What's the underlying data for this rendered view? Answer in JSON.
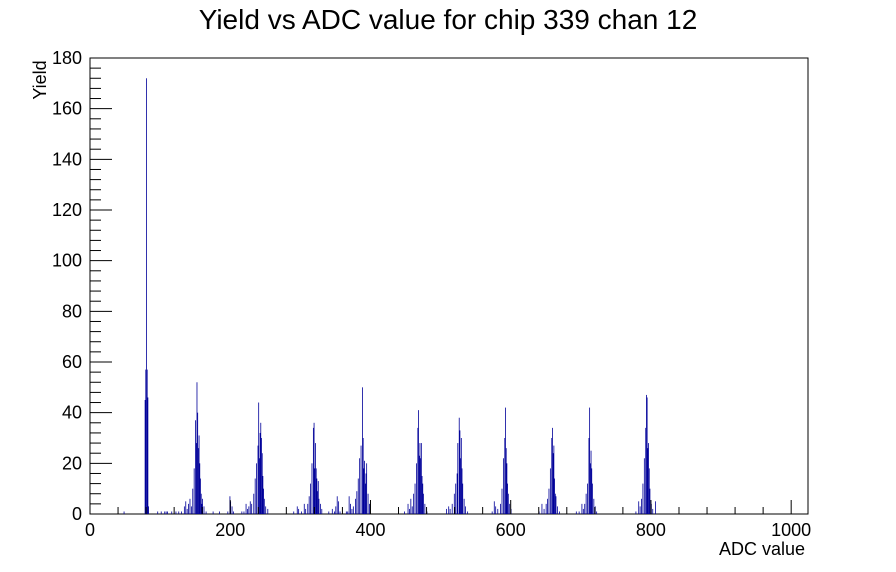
{
  "chart_data": {
    "type": "bar",
    "title": "Yield vs ADC value for chip 339 chan 12",
    "xlabel": "ADC value",
    "ylabel": "Yield",
    "xlim": [
      0,
      1024
    ],
    "ylim": [
      0,
      180
    ],
    "x_ticks": [
      "0",
      "200",
      "400",
      "600",
      "800",
      "1000"
    ],
    "y_ticks": [
      "0",
      "20",
      "40",
      "60",
      "80",
      "100",
      "120",
      "140",
      "160",
      "180"
    ],
    "grid": false,
    "legend": "none",
    "line_color": "#000099",
    "bin_width": 1,
    "bins": [
      [
        48,
        1
      ],
      [
        78,
        45
      ],
      [
        79,
        57
      ],
      [
        80,
        172
      ],
      [
        81,
        57
      ],
      [
        82,
        46
      ],
      [
        83,
        3
      ],
      [
        96,
        1
      ],
      [
        101,
        1
      ],
      [
        106,
        1
      ],
      [
        108,
        1
      ],
      [
        110,
        1
      ],
      [
        116,
        1
      ],
      [
        122,
        1
      ],
      [
        126,
        1
      ],
      [
        130,
        1
      ],
      [
        134,
        3
      ],
      [
        136,
        5
      ],
      [
        138,
        2
      ],
      [
        140,
        4
      ],
      [
        142,
        6
      ],
      [
        144,
        3
      ],
      [
        146,
        10
      ],
      [
        148,
        18
      ],
      [
        150,
        37
      ],
      [
        151,
        28
      ],
      [
        152,
        52
      ],
      [
        153,
        40
      ],
      [
        154,
        26
      ],
      [
        155,
        31
      ],
      [
        156,
        20
      ],
      [
        157,
        14
      ],
      [
        158,
        8
      ],
      [
        159,
        4
      ],
      [
        160,
        6
      ],
      [
        162,
        3
      ],
      [
        165,
        1
      ],
      [
        175,
        1
      ],
      [
        184,
        1
      ],
      [
        196,
        1
      ],
      [
        199,
        7
      ],
      [
        200,
        5
      ],
      [
        202,
        3
      ],
      [
        204,
        1
      ],
      [
        216,
        1
      ],
      [
        219,
        1
      ],
      [
        222,
        4
      ],
      [
        224,
        2
      ],
      [
        226,
        3
      ],
      [
        228,
        5
      ],
      [
        230,
        4
      ],
      [
        233,
        8
      ],
      [
        235,
        14
      ],
      [
        237,
        20
      ],
      [
        239,
        27
      ],
      [
        240,
        44
      ],
      [
        241,
        22
      ],
      [
        242,
        32
      ],
      [
        243,
        36
      ],
      [
        244,
        30
      ],
      [
        245,
        24
      ],
      [
        246,
        15
      ],
      [
        247,
        10
      ],
      [
        248,
        6
      ],
      [
        250,
        3
      ],
      [
        253,
        2
      ],
      [
        290,
        1
      ],
      [
        295,
        3
      ],
      [
        297,
        2
      ],
      [
        301,
        1
      ],
      [
        305,
        4
      ],
      [
        307,
        2
      ],
      [
        310,
        4
      ],
      [
        312,
        7
      ],
      [
        314,
        12
      ],
      [
        316,
        20
      ],
      [
        318,
        34
      ],
      [
        319,
        36
      ],
      [
        320,
        18
      ],
      [
        321,
        28
      ],
      [
        322,
        18
      ],
      [
        323,
        14
      ],
      [
        324,
        9
      ],
      [
        325,
        13
      ],
      [
        326,
        6
      ],
      [
        328,
        4
      ],
      [
        330,
        2
      ],
      [
        340,
        1
      ],
      [
        345,
        2
      ],
      [
        348,
        1
      ],
      [
        350,
        3
      ],
      [
        352,
        7
      ],
      [
        354,
        5
      ],
      [
        356,
        1
      ],
      [
        365,
        1
      ],
      [
        367,
        1
      ],
      [
        369,
        7
      ],
      [
        371,
        4
      ],
      [
        373,
        2
      ],
      [
        375,
        3
      ],
      [
        378,
        6
      ],
      [
        380,
        9
      ],
      [
        382,
        14
      ],
      [
        384,
        22
      ],
      [
        386,
        27
      ],
      [
        388,
        50
      ],
      [
        389,
        30
      ],
      [
        390,
        18
      ],
      [
        391,
        21
      ],
      [
        392,
        12
      ],
      [
        393,
        16
      ],
      [
        394,
        20
      ],
      [
        396,
        8
      ],
      [
        398,
        4
      ],
      [
        448,
        1
      ],
      [
        453,
        4
      ],
      [
        455,
        2
      ],
      [
        457,
        6
      ],
      [
        459,
        3
      ],
      [
        461,
        8
      ],
      [
        463,
        12
      ],
      [
        465,
        20
      ],
      [
        467,
        34
      ],
      [
        468,
        41
      ],
      [
        469,
        23
      ],
      [
        470,
        28
      ],
      [
        471,
        22
      ],
      [
        472,
        28
      ],
      [
        473,
        15
      ],
      [
        474,
        12
      ],
      [
        475,
        8
      ],
      [
        477,
        4
      ],
      [
        480,
        1
      ],
      [
        508,
        2
      ],
      [
        511,
        3
      ],
      [
        513,
        2
      ],
      [
        516,
        4
      ],
      [
        519,
        8
      ],
      [
        521,
        12
      ],
      [
        523,
        16
      ],
      [
        524,
        28
      ],
      [
        526,
        38
      ],
      [
        527,
        33
      ],
      [
        528,
        22
      ],
      [
        529,
        30
      ],
      [
        530,
        18
      ],
      [
        531,
        12
      ],
      [
        533,
        6
      ],
      [
        535,
        3
      ],
      [
        538,
        1
      ],
      [
        573,
        1
      ],
      [
        576,
        5
      ],
      [
        578,
        3
      ],
      [
        581,
        2
      ],
      [
        585,
        4
      ],
      [
        587,
        10
      ],
      [
        589,
        22
      ],
      [
        591,
        30
      ],
      [
        592,
        42
      ],
      [
        593,
        26
      ],
      [
        594,
        20
      ],
      [
        595,
        12
      ],
      [
        596,
        8
      ],
      [
        598,
        4
      ],
      [
        600,
        2
      ],
      [
        640,
        1
      ],
      [
        644,
        4
      ],
      [
        647,
        2
      ],
      [
        650,
        4
      ],
      [
        652,
        6
      ],
      [
        654,
        10
      ],
      [
        656,
        18
      ],
      [
        658,
        30
      ],
      [
        659,
        34
      ],
      [
        660,
        24
      ],
      [
        661,
        27
      ],
      [
        662,
        14
      ],
      [
        663,
        8
      ],
      [
        664,
        7
      ],
      [
        666,
        3
      ],
      [
        669,
        1
      ],
      [
        693,
        1
      ],
      [
        697,
        1
      ],
      [
        701,
        4
      ],
      [
        703,
        2
      ],
      [
        705,
        4
      ],
      [
        707,
        8
      ],
      [
        709,
        12
      ],
      [
        711,
        30
      ],
      [
        712,
        42
      ],
      [
        713,
        20
      ],
      [
        714,
        25
      ],
      [
        715,
        18
      ],
      [
        716,
        12
      ],
      [
        718,
        6
      ],
      [
        720,
        3
      ],
      [
        722,
        1
      ],
      [
        778,
        1
      ],
      [
        782,
        5
      ],
      [
        784,
        3
      ],
      [
        786,
        6
      ],
      [
        788,
        12
      ],
      [
        790,
        22
      ],
      [
        792,
        34
      ],
      [
        793,
        47
      ],
      [
        794,
        46
      ],
      [
        795,
        26
      ],
      [
        796,
        28
      ],
      [
        797,
        18
      ],
      [
        798,
        10
      ],
      [
        800,
        4
      ],
      [
        802,
        2
      ],
      [
        806,
        5
      ]
    ]
  }
}
